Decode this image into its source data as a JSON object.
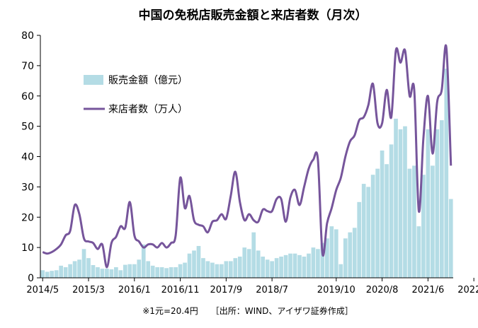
{
  "chart_data": {
    "type": "bar",
    "title": "中国の免税店販売金額と来店者数（月次）",
    "footnote": "※1元=20.4円　　［出所：WIND、アイザワ証券作成］",
    "ylim": [
      0,
      80
    ],
    "yticks": [
      "0",
      "10",
      "20",
      "30",
      "40",
      "50",
      "60",
      "70",
      "80"
    ],
    "x_tick_labels": [
      "2014/5",
      "2015/3",
      "2016/1",
      "2016/11",
      "2017/9",
      "2018/7",
      "2019/10",
      "2020/8",
      "2021/6",
      "2022/4"
    ],
    "x_tick_positions": [
      0,
      10,
      20,
      30,
      40,
      50,
      64,
      74,
      84,
      94
    ],
    "legend_placement": "upper-left",
    "colors": {
      "bar": "#b4dce5",
      "line": "#76559b",
      "axis": "#000000"
    },
    "series": [
      {
        "name": "販売金額（億元）",
        "kind": "bar",
        "values": [
          2.5,
          2,
          2.3,
          2.5,
          4,
          3.5,
          4.5,
          5.5,
          6,
          9.5,
          6.5,
          4.2,
          3.5,
          3,
          3,
          2.8,
          3.5,
          2.5,
          4.3,
          4.5,
          4.5,
          6,
          11,
          5.5,
          4,
          3.5,
          3.5,
          3.2,
          3.5,
          3.5,
          4.5,
          5,
          8,
          9,
          10.5,
          6.5,
          5.5,
          5,
          4.5,
          4.5,
          5.5,
          5.5,
          6.5,
          7,
          10,
          9.5,
          15,
          9,
          7,
          6,
          5.5,
          6.5,
          7,
          7.5,
          8,
          8,
          7.5,
          7,
          8,
          10,
          9.5,
          11.5,
          13,
          17,
          16,
          4.5,
          13,
          15,
          16.5,
          25,
          31,
          30,
          34,
          36,
          42,
          37.5,
          44,
          52.5,
          49,
          50,
          36,
          37,
          17,
          34,
          49,
          37,
          49,
          52,
          69,
          26
        ]
      },
      {
        "name": "来店者数（万人）",
        "kind": "line",
        "values": [
          8.5,
          8,
          8.5,
          9.5,
          11,
          14,
          15.5,
          24,
          21,
          13,
          12,
          11.5,
          9.5,
          11,
          3.5,
          11.5,
          13.5,
          17,
          16.5,
          25,
          14,
          12,
          10,
          11,
          11,
          10,
          11.5,
          10,
          11.5,
          14,
          33,
          23,
          27,
          19,
          17.5,
          17,
          15,
          18.5,
          19,
          21,
          19.5,
          27,
          35,
          25,
          19,
          21,
          19,
          18.5,
          22.5,
          22,
          22,
          26,
          26,
          18.5,
          26.5,
          29,
          24,
          30,
          36,
          39,
          39,
          8,
          18,
          23,
          29,
          33,
          40,
          45,
          47,
          52,
          53,
          57,
          64,
          51,
          51,
          62,
          53,
          75,
          71,
          75,
          60,
          62,
          22,
          46,
          60,
          41,
          58,
          62,
          76,
          37
        ]
      }
    ]
  }
}
